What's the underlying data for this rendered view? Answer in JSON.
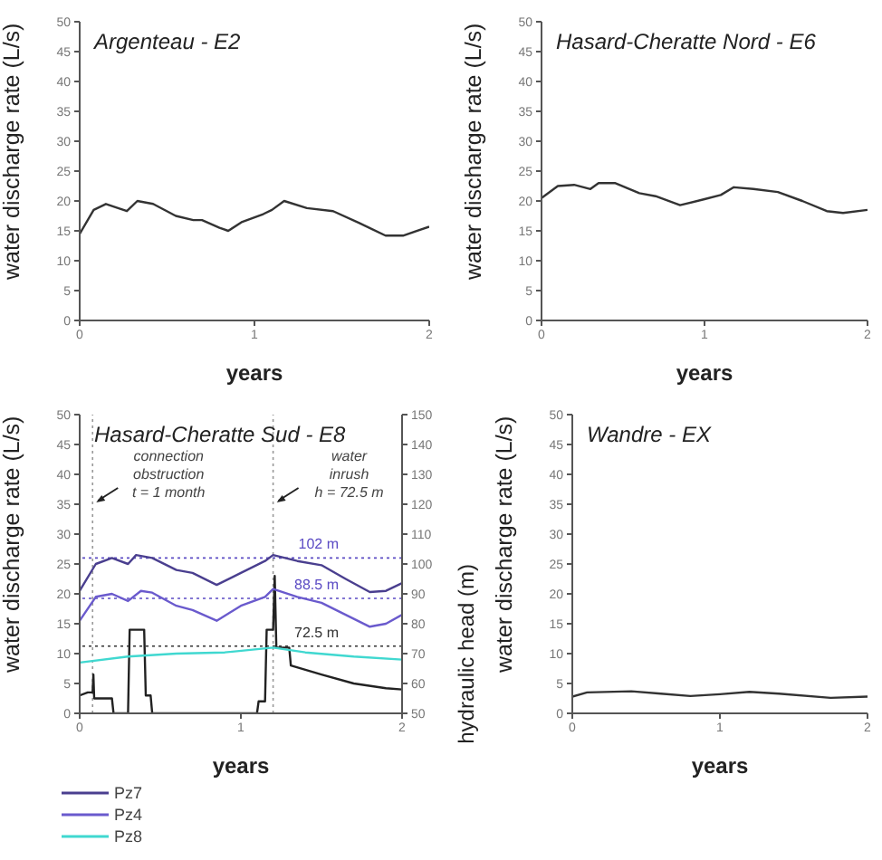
{
  "chart_data": [
    {
      "type": "line",
      "title": "Argenteau - E2",
      "xlabel": "years",
      "ylabel": "water discharge rate (L/s)",
      "xlim": [
        0,
        2
      ],
      "xticks": [
        0,
        1,
        2
      ],
      "ylim": [
        0,
        50
      ],
      "yticks": [
        0,
        5,
        10,
        15,
        20,
        25,
        30,
        35,
        40,
        45,
        50
      ],
      "series": [
        {
          "color": "#333333",
          "x": [
            0,
            0.08,
            0.15,
            0.27,
            0.33,
            0.42,
            0.55,
            0.65,
            0.7,
            0.8,
            0.85,
            0.93,
            1.05,
            1.1,
            1.17,
            1.3,
            1.45,
            1.6,
            1.75,
            1.85,
            2
          ],
          "values": [
            14.5,
            18.5,
            19.5,
            18.3,
            20,
            19.5,
            17.5,
            16.8,
            16.8,
            15.5,
            15,
            16.5,
            17.8,
            18.5,
            20,
            18.8,
            18.3,
            16.3,
            14.2,
            14.2,
            15.7
          ]
        }
      ]
    },
    {
      "type": "line",
      "title": "Hasard-Cheratte Nord - E6",
      "xlabel": "years",
      "ylabel": "water discharge rate (L/s)",
      "xlim": [
        0,
        2
      ],
      "xticks": [
        0,
        1,
        2
      ],
      "ylim": [
        0,
        50
      ],
      "yticks": [
        0,
        5,
        10,
        15,
        20,
        25,
        30,
        35,
        40,
        45,
        50
      ],
      "series": [
        {
          "color": "#333333",
          "x": [
            0,
            0.1,
            0.2,
            0.3,
            0.35,
            0.45,
            0.6,
            0.7,
            0.85,
            1,
            1.1,
            1.18,
            1.3,
            1.45,
            1.6,
            1.75,
            1.85,
            2
          ],
          "values": [
            20.5,
            22.5,
            22.7,
            22,
            23,
            23,
            21.3,
            20.8,
            19.3,
            20.3,
            21,
            22.3,
            22,
            21.5,
            20,
            18.3,
            18,
            18.5
          ]
        }
      ]
    },
    {
      "type": "line",
      "title": "Hasard-Cheratte Sud - E8",
      "xlabel": "years",
      "ylabel": "water discharge rate (L/s)",
      "y2label": "hydraulic head (m)",
      "xlim": [
        0,
        2
      ],
      "xticks": [
        0,
        1,
        2
      ],
      "ylim": [
        0,
        50
      ],
      "yticks": [
        0,
        5,
        10,
        15,
        20,
        25,
        30,
        35,
        40,
        45,
        50
      ],
      "y2lim": [
        50,
        150
      ],
      "y2ticks": [
        50,
        60,
        70,
        80,
        90,
        100,
        110,
        120,
        130,
        140,
        150
      ],
      "legend": "bottom left",
      "series": [
        {
          "color": "#222222",
          "x": [
            0,
            0.05,
            0.08,
            0.085,
            0.09,
            0.2,
            0.21,
            0.3,
            0.31,
            0.4,
            0.41,
            0.44,
            0.45,
            1.1,
            1.11,
            1.15,
            1.16,
            1.2,
            1.21,
            1.22,
            1.3,
            1.31,
            1.5,
            1.7,
            1.9,
            2
          ],
          "values": [
            3,
            3.5,
            3.5,
            6.5,
            2.5,
            2.5,
            0,
            0,
            14,
            14,
            3,
            3,
            0,
            0,
            2,
            2,
            14,
            14,
            23,
            11,
            11,
            8,
            6.5,
            5,
            4.2,
            4
          ]
        },
        {
          "name": "Pz7",
          "color": "#4a3f8f",
          "axis": "y2",
          "x": [
            0,
            0.1,
            0.2,
            0.3,
            0.35,
            0.45,
            0.6,
            0.7,
            0.85,
            1,
            1.15,
            1.2,
            1.35,
            1.5,
            1.65,
            1.8,
            1.9,
            2
          ],
          "values": [
            91,
            100,
            102,
            100,
            103,
            102,
            98,
            97,
            93,
            97,
            101,
            103,
            101,
            99.6,
            95,
            90.6,
            91,
            93.6
          ]
        },
        {
          "name": "Pz4",
          "color": "#6a5acd",
          "axis": "y2",
          "x": [
            0,
            0.1,
            0.2,
            0.3,
            0.38,
            0.45,
            0.6,
            0.7,
            0.85,
            1,
            1.15,
            1.2,
            1.35,
            1.5,
            1.65,
            1.8,
            1.9,
            2
          ],
          "values": [
            81,
            89,
            90,
            87.6,
            91,
            90.4,
            86,
            84.6,
            81,
            86,
            89,
            91.6,
            89,
            87,
            83,
            79,
            80,
            83
          ]
        },
        {
          "name": "Pz8",
          "color": "#40d8d0",
          "axis": "y2",
          "x": [
            0,
            0.3,
            0.6,
            0.9,
            1.2,
            1.4,
            1.7,
            2
          ],
          "values": [
            67,
            69,
            70,
            70.4,
            72,
            70.4,
            69,
            68
          ]
        }
      ],
      "ref_lines": [
        {
          "axis": "y2",
          "value": 102,
          "label": "102 m",
          "color": "#5b4bc4",
          "line_style": "dotted"
        },
        {
          "axis": "y2",
          "value": 88.5,
          "label": "88.5 m",
          "color": "#5b4bc4",
          "line_style": "dotted"
        },
        {
          "axis": "y2",
          "value": 72.5,
          "label": "72.5 m",
          "color": "#333333",
          "line_style": "dotted"
        },
        {
          "axis": "x",
          "value": 0.08,
          "color": "#999999",
          "line_style": "dotted"
        },
        {
          "axis": "x",
          "value": 1.2,
          "color": "#999999",
          "line_style": "dotted"
        }
      ],
      "annotations": [
        {
          "text": "connection\nobstruction\nt = 1 month",
          "x": 0.08,
          "y": 35
        },
        {
          "text": "water\ninrush\nh = 72.5 m",
          "x": 1.2,
          "y": 35
        }
      ]
    },
    {
      "type": "line",
      "title": "Wandre - EX",
      "xlabel": "years",
      "ylabel": "water discharge rate (L/s)",
      "xlim": [
        0,
        2
      ],
      "xticks": [
        0,
        1,
        2
      ],
      "ylim": [
        0,
        50
      ],
      "yticks": [
        0,
        5,
        10,
        15,
        20,
        25,
        30,
        35,
        40,
        45,
        50
      ],
      "series": [
        {
          "color": "#333333",
          "x": [
            0,
            0.1,
            0.4,
            0.6,
            0.8,
            1,
            1.2,
            1.4,
            1.75,
            2
          ],
          "values": [
            2.8,
            3.5,
            3.7,
            3.3,
            2.9,
            3.2,
            3.6,
            3.3,
            2.6,
            2.8
          ]
        }
      ]
    }
  ]
}
